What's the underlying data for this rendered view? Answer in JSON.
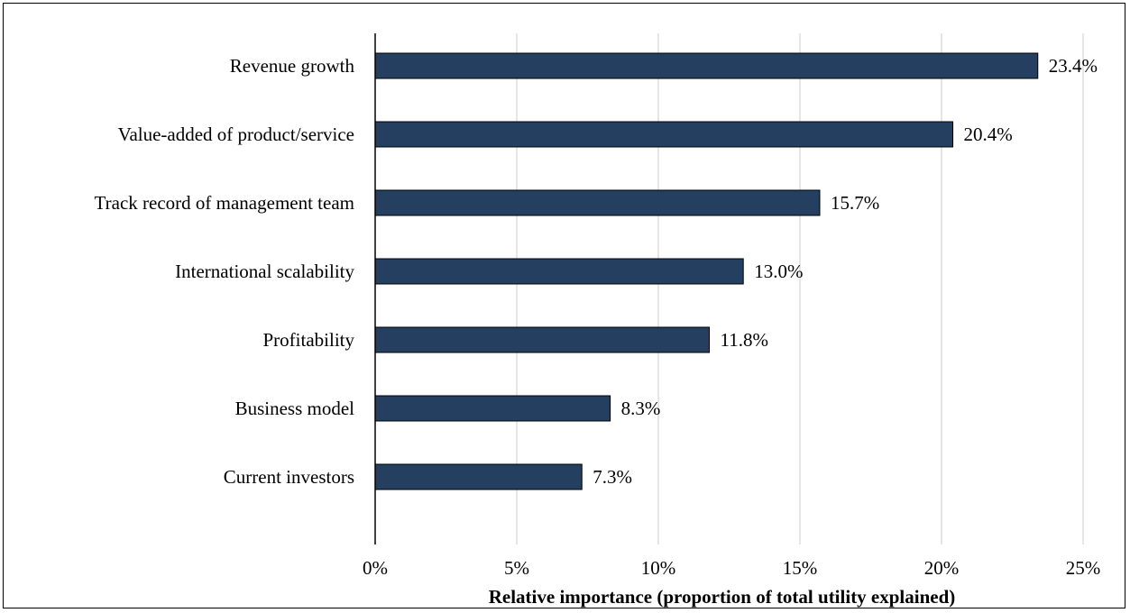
{
  "chart_data": {
    "type": "bar",
    "orientation": "horizontal",
    "categories": [
      "Revenue growth",
      "Value-added of product/service",
      "Track record of management team",
      "International scalability",
      "Profitability",
      "Business model",
      "Current investors"
    ],
    "values": [
      23.4,
      20.4,
      15.7,
      13.0,
      11.8,
      8.3,
      7.3
    ],
    "value_labels": [
      "23.4%",
      "20.4%",
      "15.7%",
      "13.0%",
      "11.8%",
      "8.3%",
      "7.3%"
    ],
    "xlabel": "Relative importance (proportion of total utility explained)",
    "xlim": [
      0,
      25
    ],
    "x_ticks": [
      0,
      5,
      10,
      15,
      20,
      25
    ],
    "x_tick_labels": [
      "0%",
      "5%",
      "10%",
      "15%",
      "20%",
      "25%"
    ],
    "grid": "vertical",
    "legend": "none",
    "colors": {
      "bar": "#243f60",
      "bar_edge": "#000000",
      "grid": "#d9d9d9",
      "axis": "#000000",
      "text": "#000000"
    }
  }
}
